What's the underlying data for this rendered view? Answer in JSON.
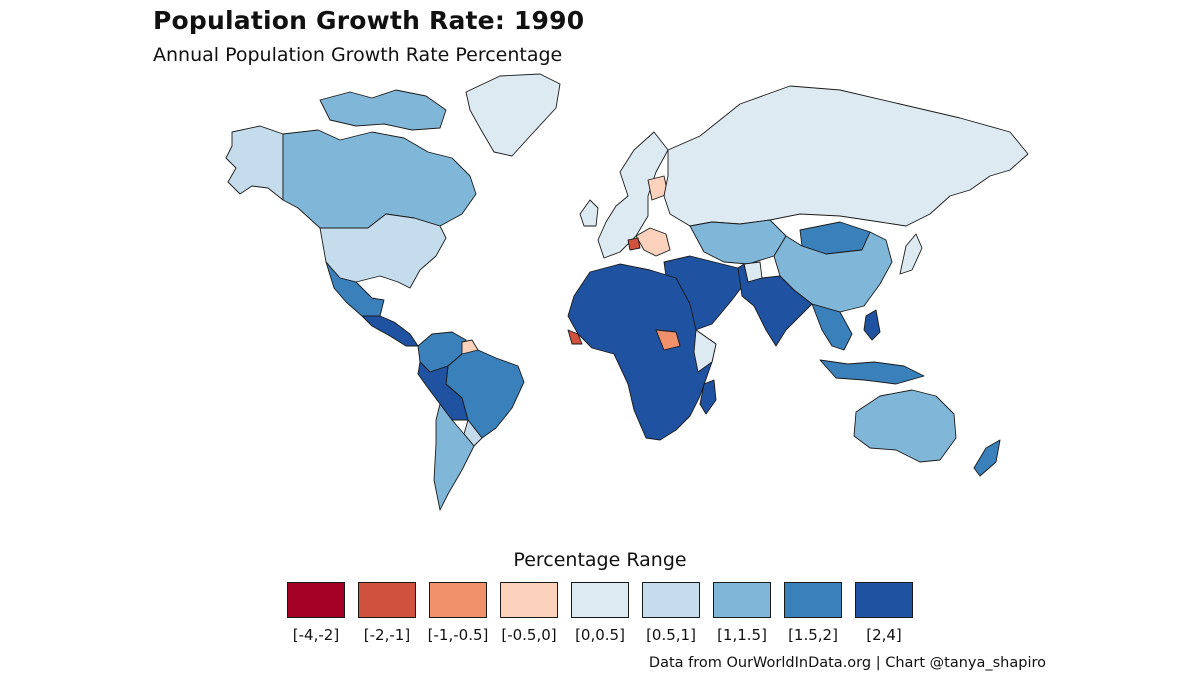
{
  "title": "Population Growth Rate: 1990",
  "subtitle": "Annual Population Growth Rate Percentage",
  "legend": {
    "title": "Percentage Range",
    "items": [
      {
        "label": "[-4,-2]",
        "color": "#a50026"
      },
      {
        "label": "[-2,-1]",
        "color": "#d0513e"
      },
      {
        "label": "[-1,-0.5]",
        "color": "#f0916b"
      },
      {
        "label": "[-0.5,0]",
        "color": "#fcd2bc"
      },
      {
        "label": "[0,0.5]",
        "color": "#deeaf2"
      },
      {
        "label": "[0.5,1]",
        "color": "#c5dcec"
      },
      {
        "label": "[1,1.5]",
        "color": "#80b7d8"
      },
      {
        "label": "[1.5,2]",
        "color": "#3a80bb"
      },
      {
        "label": "[2,4]",
        "color": "#1f52a0"
      }
    ]
  },
  "caption": "Data from OurWorldInData.org | Chart @tanya_shapiro",
  "map_data": {
    "type": "choropleth",
    "year": 1990,
    "regions": [
      {
        "region": "Canada",
        "range": "[1,1.5]"
      },
      {
        "region": "Alaska",
        "range": "[0.5,1]"
      },
      {
        "region": "United States",
        "range": "[0.5,1]"
      },
      {
        "region": "Mexico",
        "range": "[1.5,2]"
      },
      {
        "region": "Central America",
        "range": "[2,4]"
      },
      {
        "region": "Colombia / Venezuela",
        "range": "[1.5,2]"
      },
      {
        "region": "Brazil",
        "range": "[1.5,2]"
      },
      {
        "region": "Suriname",
        "range": "[-0.5,0]"
      },
      {
        "region": "Peru / Bolivia / Paraguay",
        "range": "[2,4]"
      },
      {
        "region": "Chile / Argentina",
        "range": "[1,1.5]"
      },
      {
        "region": "Uruguay",
        "range": "[0.5,1]"
      },
      {
        "region": "Greenland",
        "range": "[0,0.5]"
      },
      {
        "region": "Russia",
        "range": "[0,0.5]"
      },
      {
        "region": "Western Europe",
        "range": "[0,0.5]"
      },
      {
        "region": "Baltics / Belarus",
        "range": "[-0.5,0]"
      },
      {
        "region": "Balkans",
        "range": "[-0.5,0]"
      },
      {
        "region": "Bosnia",
        "range": "[-2,-1]"
      },
      {
        "region": "Central Asia",
        "range": "[1,1.5]"
      },
      {
        "region": "Mongolia",
        "range": "[1.5,2]"
      },
      {
        "region": "China",
        "range": "[1,1.5]"
      },
      {
        "region": "Middle East",
        "range": "[2,4]"
      },
      {
        "region": "Afghanistan",
        "range": "[0,0.5]"
      },
      {
        "region": "South Asia",
        "range": "[2,4]"
      },
      {
        "region": "Southeast Asia",
        "range": "[1.5,2]"
      },
      {
        "region": "Indonesia",
        "range": "[1.5,2]"
      },
      {
        "region": "Philippines",
        "range": "[2,4]"
      },
      {
        "region": "Japan",
        "range": "[0,0.5]"
      },
      {
        "region": "Africa",
        "range": "[2,4]"
      },
      {
        "region": "Sierra Leone / Liberia",
        "range": "[-2,-1]"
      },
      {
        "region": "South Sudan",
        "range": "[-1,-0.5]"
      },
      {
        "region": "Somalia",
        "range": "[0,0.5]"
      },
      {
        "region": "Madagascar",
        "range": "[2,4]"
      },
      {
        "region": "Australia",
        "range": "[1,1.5]"
      },
      {
        "region": "New Zealand",
        "range": "[1.5,2]"
      }
    ]
  }
}
